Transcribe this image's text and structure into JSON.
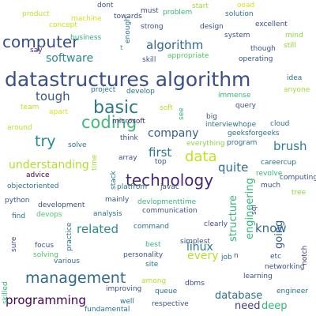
{
  "words": [
    {
      "text": "datastructures algorithm",
      "color": "#3a4f8a"
    },
    {
      "text": "computer",
      "color": "#3a4f8a"
    },
    {
      "text": "technology",
      "color": "#482878"
    },
    {
      "text": "management",
      "color": "#2f6a8e"
    },
    {
      "text": "basic",
      "color": "#2b7a8c"
    },
    {
      "text": "coding",
      "color": "#3fb87a"
    },
    {
      "text": "try",
      "color": "#238a8d"
    },
    {
      "text": "data",
      "color": "#c8e020"
    },
    {
      "text": "algorithm",
      "color": "#31688e"
    },
    {
      "text": "software",
      "color": "#2c8b8b"
    },
    {
      "text": "tough",
      "color": "#3b528b"
    },
    {
      "text": "understanding",
      "color": "#b5de2b"
    },
    {
      "text": "related",
      "color": "#2c8a8c"
    },
    {
      "text": "programming",
      "color": "#440154"
    },
    {
      "text": "structure",
      "color": "#3eb57b"
    },
    {
      "text": "engineering",
      "color": "#36b879"
    },
    {
      "text": "brush",
      "color": "#2e7d8e"
    },
    {
      "text": "quite",
      "color": "#2e6e8e"
    },
    {
      "text": "company",
      "color": "#33608d"
    },
    {
      "text": "first",
      "color": "#2e758e"
    },
    {
      "text": "know",
      "color": "#2f6c8e"
    },
    {
      "text": "going",
      "color": "#355e8d"
    },
    {
      "text": "every",
      "color": "#b8de29"
    },
    {
      "text": "linux",
      "color": "#2a788e"
    },
    {
      "text": "database",
      "color": "#2f6d8e"
    },
    {
      "text": "need",
      "color": "#414487"
    },
    {
      "text": "deep",
      "color": "#34b679"
    },
    {
      "text": "product",
      "color": "#c0df25"
    },
    {
      "text": "machine",
      "color": "#d2e21b"
    },
    {
      "text": "dont",
      "color": "#3b528b"
    },
    {
      "text": "towards",
      "color": "#3b528b"
    },
    {
      "text": "must",
      "color": "#3e4c8a"
    },
    {
      "text": "problem",
      "color": "#35b779"
    },
    {
      "text": "start",
      "color": "#9fda3a"
    },
    {
      "text": "ooad",
      "color": "#d8e219"
    },
    {
      "text": "solution",
      "color": "#2c728e"
    },
    {
      "text": "concept",
      "color": "#cde11d"
    },
    {
      "text": "business",
      "color": "#2fb47c"
    },
    {
      "text": "enough",
      "color": "#2c728e"
    },
    {
      "text": "strong",
      "color": "#3b528b"
    },
    {
      "text": "design",
      "color": "#3b528b"
    },
    {
      "text": "excellent",
      "color": "#3b528b"
    },
    {
      "text": "mind",
      "color": "#8ed645"
    },
    {
      "text": "system",
      "color": "#3b528b"
    },
    {
      "text": "still",
      "color": "#8ed645"
    },
    {
      "text": "say",
      "color": "#482878"
    },
    {
      "text": "t",
      "color": "#35b779"
    },
    {
      "text": "skill",
      "color": "#3b528b"
    },
    {
      "text": "appropriate",
      "color": "#52c569"
    },
    {
      "text": "though",
      "color": "#3b528b"
    },
    {
      "text": "operating",
      "color": "#3b528b"
    },
    {
      "text": "project",
      "color": "#2c728e"
    },
    {
      "text": "develop",
      "color": "#2c728e"
    },
    {
      "text": "idea",
      "color": "#2c728e"
    },
    {
      "text": "team",
      "color": "#bddf26"
    },
    {
      "text": "immense",
      "color": "#35b779"
    },
    {
      "text": "anyone",
      "color": "#a5db36"
    },
    {
      "text": "soft",
      "color": "#b5de2b"
    },
    {
      "text": "query",
      "color": "#3b528b"
    },
    {
      "text": "apart",
      "color": "#dde318"
    },
    {
      "text": "microsoft",
      "color": "#482878"
    },
    {
      "text": "see",
      "color": "#35b779"
    },
    {
      "text": "big",
      "color": "#3b528b"
    },
    {
      "text": "interviewhope",
      "color": "#2c728e"
    },
    {
      "text": "cloud",
      "color": "#2c728e"
    },
    {
      "text": "around",
      "color": "#c0df25"
    },
    {
      "text": "think",
      "color": "#3b528b"
    },
    {
      "text": "everything",
      "color": "#8ed645"
    },
    {
      "text": "geeksforgeeks",
      "color": "#2c728e"
    },
    {
      "text": "solve",
      "color": "#2c728e"
    },
    {
      "text": "program",
      "color": "#2c728e"
    },
    {
      "text": "careercup",
      "color": "#2c728e"
    },
    {
      "text": "advice",
      "color": "#440154"
    },
    {
      "text": "time",
      "color": "#a5db36"
    },
    {
      "text": "top",
      "color": "#3b528b"
    },
    {
      "text": "array",
      "color": "#3b528b"
    },
    {
      "text": "computing",
      "color": "#3b528b"
    },
    {
      "text": "objectoriented",
      "color": "#2c728e"
    },
    {
      "text": "stack",
      "color": "#2c728e"
    },
    {
      "text": "platfrom",
      "color": "#2c728e"
    },
    {
      "text": "javac",
      "color": "#3b528b"
    },
    {
      "text": "revolve",
      "color": "#35b779"
    },
    {
      "text": "much",
      "color": "#3b528b"
    },
    {
      "text": "python",
      "color": "#3b528b"
    },
    {
      "text": "development",
      "color": "#3b528b"
    },
    {
      "text": "mainly",
      "color": "#3b528b"
    },
    {
      "text": "devlopmenttime",
      "color": "#35b779"
    },
    {
      "text": "tree",
      "color": "#8ed645"
    },
    {
      "text": "find",
      "color": "#2c728e"
    },
    {
      "text": "devops",
      "color": "#52c569"
    },
    {
      "text": "analysis",
      "color": "#2c728e"
    },
    {
      "text": "communication",
      "color": "#3b528b"
    },
    {
      "text": "sql",
      "color": "#3b528b"
    },
    {
      "text": "command",
      "color": "#2c728e"
    },
    {
      "text": "clearly",
      "color": "#3b528b"
    },
    {
      "text": "practice",
      "color": "#2c728e"
    },
    {
      "text": "sure",
      "color": "#3b528b"
    },
    {
      "text": "focus",
      "color": "#3b528b"
    },
    {
      "text": "best",
      "color": "#35b779"
    },
    {
      "text": "simplest",
      "color": "#3b528b"
    },
    {
      "text": "notch",
      "color": "#482878"
    },
    {
      "text": "solving",
      "color": "#52c569"
    },
    {
      "text": "various",
      "color": "#2c728e"
    },
    {
      "text": "personality",
      "color": "#3b528b"
    },
    {
      "text": "job",
      "color": "#2c728e"
    },
    {
      "text": "n",
      "color": "#3b528b"
    },
    {
      "text": "etc",
      "color": "#3b528b"
    },
    {
      "text": "site",
      "color": "#2c728e"
    },
    {
      "text": "networking",
      "color": "#3b528b"
    },
    {
      "text": "skilled",
      "color": "#35b779"
    },
    {
      "text": "among",
      "color": "#b5de2b"
    },
    {
      "text": "dbms",
      "color": "#3b528b"
    },
    {
      "text": "learning",
      "color": "#3b528b"
    },
    {
      "text": "improving",
      "color": "#3b528b"
    },
    {
      "text": "queue",
      "color": "#2c728e"
    },
    {
      "text": "engineer",
      "color": "#2c728e"
    },
    {
      "text": "well",
      "color": "#2c728e"
    },
    {
      "text": "respective",
      "color": "#3b528b"
    },
    {
      "text": "fundamental",
      "color": "#2c728e"
    }
  ]
}
